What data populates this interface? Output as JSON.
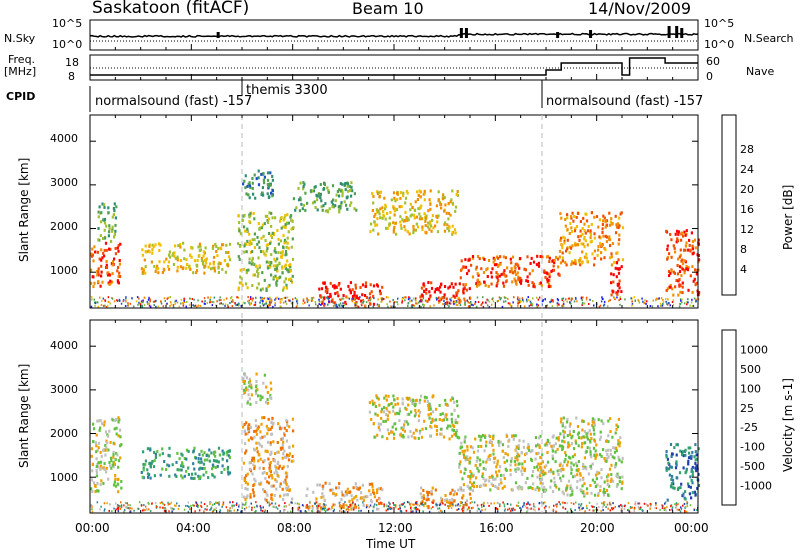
{
  "header": {
    "station": "Saskatoon (fitACF)",
    "beam": "Beam 10",
    "date": "14/Nov/2009"
  },
  "top_panel": {
    "left_label": "N.Sky",
    "left_ticks": [
      "10^5",
      "10^0"
    ],
    "right_label": "N.Search",
    "right_ticks": [
      "10^5",
      "10^0"
    ]
  },
  "freq_panel": {
    "left_label_1": "Freq.",
    "left_label_2": "[MHz]",
    "left_ticks": [
      "18",
      "8"
    ],
    "right_label": "Nave",
    "right_ticks": [
      "60",
      "0"
    ]
  },
  "cpid": {
    "label": "CPID",
    "segments": [
      {
        "name": "normalsound (fast) -157",
        "start_hour": 0
      },
      {
        "name": "themis 3300",
        "start_hour": 6.1
      },
      {
        "name": "normalsound (fast) -157",
        "start_hour": 18
      }
    ]
  },
  "x_axis": {
    "label": "Time UT",
    "ticks": [
      "00:00",
      "04:00",
      "08:00",
      "12:00",
      "16:00",
      "20:00",
      "00:00"
    ]
  },
  "power_panel": {
    "ylabel": "Slant Range [km]",
    "yticks": [
      "1000",
      "2000",
      "3000",
      "4000"
    ],
    "colorbar_label": "Power [dB]",
    "colorbar_ticks": [
      "4",
      "8",
      "12",
      "16",
      "20",
      "24",
      "28"
    ],
    "colors": [
      "#1a1aff",
      "#2050c0",
      "#2f8f6f",
      "#50a050",
      "#a0c030",
      "#f0c000",
      "#f09000",
      "#f05000",
      "#ff0000"
    ]
  },
  "velocity_panel": {
    "ylabel": "Slant Range [km]",
    "yticks": [
      "1000",
      "2000",
      "3000",
      "4000"
    ],
    "colorbar_label": "Velocity [m s-1]",
    "colorbar_ticks": [
      "1000",
      "500",
      "100",
      "25",
      "-25",
      "-100",
      "-500",
      "-1000"
    ],
    "colors": [
      "#2040b0",
      "#3080a0",
      "#30a070",
      "#60c040",
      "#c0c0c0",
      "#f0a000",
      "#f07000",
      "#ff3000",
      "#ff0000"
    ]
  },
  "chart_data": {
    "type": "heatmap",
    "x_range_hours": [
      0,
      24
    ],
    "y_range_km": [
      180,
      4600
    ],
    "power_regions": [
      {
        "t0": 0.0,
        "t1": 1.2,
        "r0": 700,
        "r1": 1700,
        "level": 7
      },
      {
        "t0": 0.2,
        "t1": 1.0,
        "r0": 1700,
        "r1": 2600,
        "level": 3
      },
      {
        "t0": 2.0,
        "t1": 5.5,
        "r0": 1000,
        "r1": 1700,
        "level": 5
      },
      {
        "t0": 5.8,
        "t1": 8.0,
        "r0": 600,
        "r1": 2400,
        "level": 4
      },
      {
        "t0": 6.0,
        "t1": 7.2,
        "r0": 2700,
        "r1": 3400,
        "level": 2
      },
      {
        "t0": 8.0,
        "t1": 10.5,
        "r0": 2400,
        "r1": 3100,
        "level": 3
      },
      {
        "t0": 9.0,
        "t1": 11.5,
        "r0": 250,
        "r1": 800,
        "level": 8
      },
      {
        "t0": 11.0,
        "t1": 14.5,
        "r0": 1900,
        "r1": 2900,
        "level": 5
      },
      {
        "t0": 13.0,
        "t1": 15.0,
        "r0": 300,
        "r1": 800,
        "level": 8
      },
      {
        "t0": 14.5,
        "t1": 18.5,
        "r0": 700,
        "r1": 1400,
        "level": 7
      },
      {
        "t0": 18.5,
        "t1": 21.0,
        "r0": 1200,
        "r1": 2400,
        "level": 6
      },
      {
        "t0": 20.5,
        "t1": 21.0,
        "r0": 500,
        "r1": 1300,
        "level": 8
      },
      {
        "t0": 22.7,
        "t1": 24.0,
        "r0": 500,
        "r1": 2000,
        "level": 7
      }
    ],
    "velocity_regions": [
      {
        "t0": 0.0,
        "t1": 1.2,
        "r0": 700,
        "r1": 2400,
        "level": 4
      },
      {
        "t0": 2.0,
        "t1": 5.5,
        "r0": 1000,
        "r1": 1700,
        "level": 2
      },
      {
        "t0": 6.0,
        "t1": 8.0,
        "r0": 500,
        "r1": 2400,
        "level": 5
      },
      {
        "t0": 6.0,
        "t1": 7.2,
        "r0": 2700,
        "r1": 3400,
        "level": 4
      },
      {
        "t0": 8.5,
        "t1": 11.5,
        "r0": 300,
        "r1": 900,
        "level": 5
      },
      {
        "t0": 11.0,
        "t1": 14.5,
        "r0": 1900,
        "r1": 2900,
        "level": 4
      },
      {
        "t0": 13.0,
        "t1": 15.0,
        "r0": 300,
        "r1": 800,
        "level": 5
      },
      {
        "t0": 14.5,
        "t1": 18.5,
        "r0": 700,
        "r1": 2000,
        "level": 4
      },
      {
        "t0": 18.5,
        "t1": 21.0,
        "r0": 600,
        "r1": 2400,
        "level": 4
      },
      {
        "t0": 22.7,
        "t1": 24.0,
        "r0": 500,
        "r1": 1800,
        "level": 1
      }
    ]
  }
}
